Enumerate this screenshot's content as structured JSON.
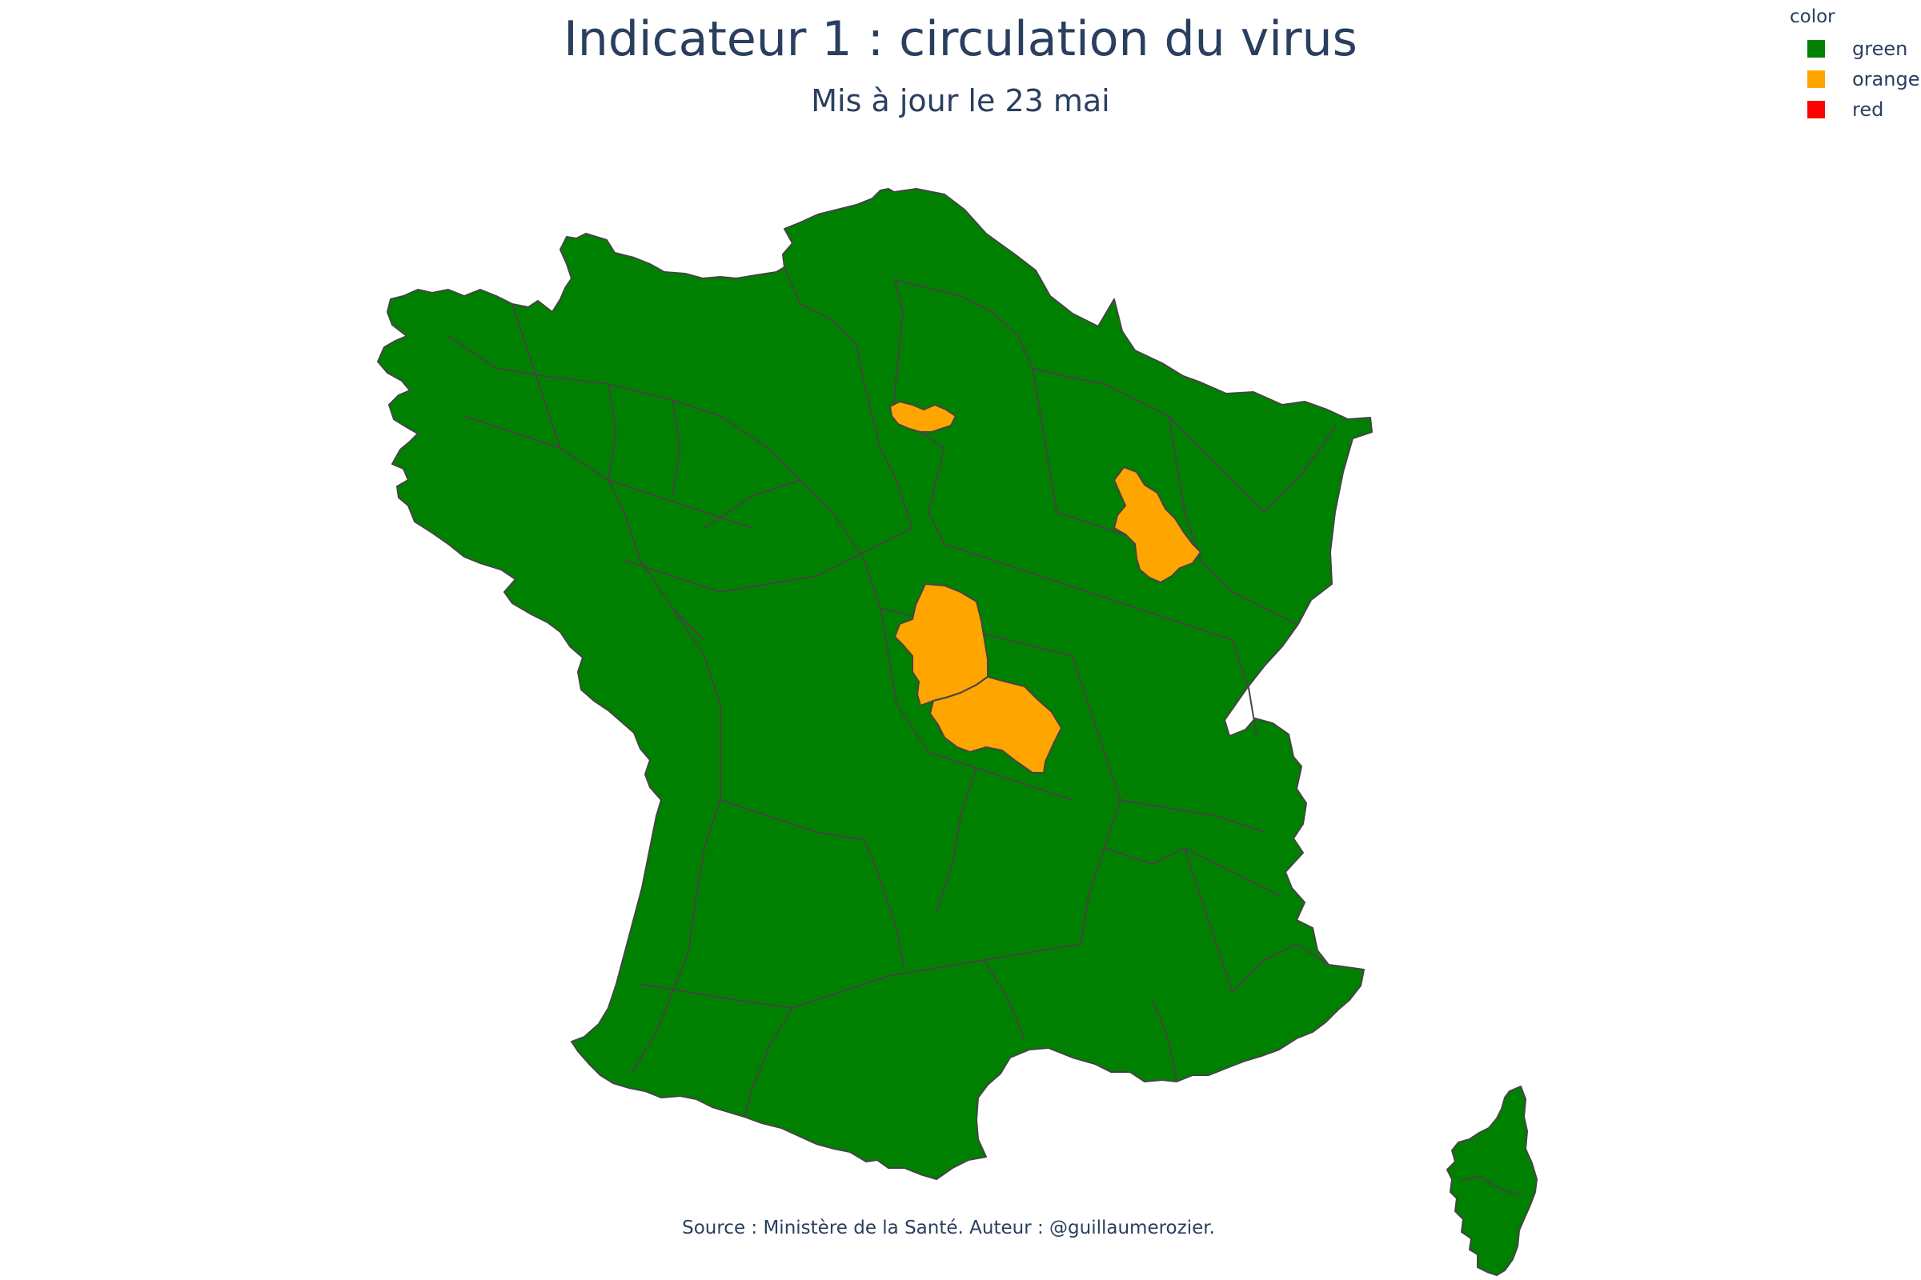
{
  "title": "Indicateur 1 : circulation du virus",
  "subtitle": "Mis à jour le 23 mai",
  "source": "Source : Ministère de la Santé. Auteur : @guillaumerozier.",
  "legend": {
    "title": "color",
    "items": [
      {
        "label": "green",
        "color": "#008000"
      },
      {
        "label": "orange",
        "color": "#ffa500"
      },
      {
        "label": "red",
        "color": "#ff0000"
      }
    ]
  },
  "colors": {
    "green": "#008000",
    "orange": "#ffa500",
    "red": "#ff0000",
    "border": "#444444",
    "text": "#2a3f5f"
  },
  "map": {
    "regions": [
      {
        "id": "mainland-france",
        "color_key": "green"
      },
      {
        "id": "corsica",
        "color_key": "green"
      },
      {
        "id": "val-d-oise",
        "color_key": "orange"
      },
      {
        "id": "haute-marne",
        "color_key": "orange"
      },
      {
        "id": "cher",
        "color_key": "orange"
      },
      {
        "id": "allier",
        "color_key": "orange"
      }
    ]
  }
}
